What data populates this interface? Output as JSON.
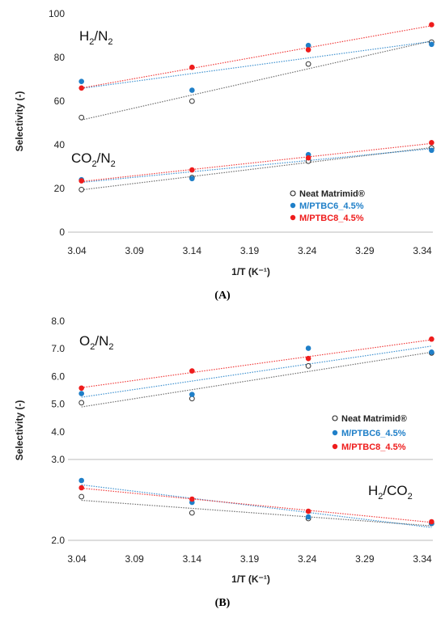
{
  "panels": [
    {
      "panel_label": "(A)",
      "xlabel": "1/T (K⁻¹)",
      "ylabel": "Selectivity  (-)",
      "x_ticks": [
        "3.04",
        "3.09",
        "3.14",
        "3.19",
        "3.24",
        "3.29",
        "3.34"
      ],
      "y_ticks": [
        "0",
        "20",
        "40",
        "60",
        "80",
        "100"
      ],
      "annotations": [
        {
          "base": "H",
          "sub1": "2",
          "mid": "/N",
          "sub2": "2"
        },
        {
          "base": "CO",
          "sub1": "2",
          "mid": "/N",
          "sub2": "2"
        }
      ],
      "legend": [
        {
          "label": "Neat Matrimid®",
          "color": "#222222",
          "marker": "open"
        },
        {
          "label": "M/PTBC6_4.5%",
          "color": "#1f7fc8",
          "marker": "filled"
        },
        {
          "label": "M/PTBC8_4.5%",
          "color": "#ee1c1c",
          "marker": "filled"
        }
      ]
    },
    {
      "panel_label": "(B)",
      "xlabel": "1/T (K⁻¹)",
      "ylabel": "Selectivity  (-)",
      "x_ticks": [
        "3.04",
        "3.09",
        "3.14",
        "3.19",
        "3.24",
        "3.29",
        "3.34"
      ],
      "y_ticks_upper": [
        "4.0",
        "5.0",
        "6.0",
        "7.0",
        "8.0"
      ],
      "y_ticks_lower": [
        "2.0",
        "3.0"
      ],
      "annotations": [
        {
          "base": "O",
          "sub1": "2",
          "mid": "/N",
          "sub2": "2"
        },
        {
          "base": "H",
          "sub1": "2",
          "mid": "/CO",
          "sub2": "2"
        }
      ],
      "legend": [
        {
          "label": "Neat Matrimid®",
          "color": "#222222",
          "marker": "open"
        },
        {
          "label": "M/PTBC6_4.5%",
          "color": "#1f7fc8",
          "marker": "filled"
        },
        {
          "label": "M/PTBC8_4.5%",
          "color": "#ee1c1c",
          "marker": "filled"
        }
      ]
    }
  ],
  "chart_data": [
    {
      "type": "scatter",
      "title": "",
      "xlabel": "1/T (K⁻¹)",
      "ylabel": "Selectivity  (-)",
      "xlim": [
        3.04,
        3.35
      ],
      "ylim": [
        0,
        100
      ],
      "grid": false,
      "legend_position": "bottom-right",
      "trendlines": "linear, dotted",
      "series": [
        {
          "name": "Neat Matrimid®",
          "group": "H2/N2",
          "color": "#222222",
          "x": [
            3.044,
            3.14,
            3.241,
            3.348
          ],
          "y": [
            52.5,
            60,
            77,
            87
          ]
        },
        {
          "name": "M/PTBC6_4.5%",
          "group": "H2/N2",
          "color": "#1f7fc8",
          "x": [
            3.044,
            3.14,
            3.241,
            3.348
          ],
          "y": [
            69,
            65,
            85.5,
            86
          ]
        },
        {
          "name": "M/PTBC8_4.5%",
          "group": "H2/N2",
          "color": "#ee1c1c",
          "x": [
            3.044,
            3.14,
            3.241,
            3.348
          ],
          "y": [
            66,
            75.5,
            83.5,
            95
          ]
        },
        {
          "name": "Neat Matrimid®",
          "group": "CO2/N2",
          "color": "#222222",
          "x": [
            3.044,
            3.14,
            3.241,
            3.348
          ],
          "y": [
            19.5,
            25,
            32.5,
            38.5
          ]
        },
        {
          "name": "M/PTBC6_4.5%",
          "group": "CO2/N2",
          "color": "#1f7fc8",
          "x": [
            3.044,
            3.14,
            3.241,
            3.348
          ],
          "y": [
            24,
            24.5,
            35.5,
            37.5
          ]
        },
        {
          "name": "M/PTBC8_4.5%",
          "group": "CO2/N2",
          "color": "#ee1c1c",
          "x": [
            3.044,
            3.14,
            3.241,
            3.348
          ],
          "y": [
            23.5,
            28.5,
            34,
            41
          ]
        }
      ]
    },
    {
      "type": "scatter",
      "title": "",
      "xlabel": "1/T (K⁻¹)",
      "ylabel": "Selectivity  (-)",
      "xlim": [
        3.04,
        3.35
      ],
      "ylim": [
        2.0,
        8.0
      ],
      "axis_break": "two subpanels: upper 3.0–8.0 (O2/N2), lower 2.0–3.0 (H2/CO2)",
      "grid": false,
      "legend_position": "right of upper subpanel",
      "trendlines": "linear, dotted",
      "series": [
        {
          "name": "Neat Matrimid®",
          "group": "O2/N2",
          "color": "#222222",
          "x": [
            3.044,
            3.14,
            3.241,
            3.348
          ],
          "y": [
            5.05,
            5.2,
            6.38,
            6.85
          ]
        },
        {
          "name": "M/PTBC6_4.5%",
          "group": "O2/N2",
          "color": "#1f7fc8",
          "x": [
            3.044,
            3.14,
            3.241,
            3.348
          ],
          "y": [
            5.38,
            5.35,
            7.02,
            6.88
          ]
        },
        {
          "name": "M/PTBC8_4.5%",
          "group": "O2/N2",
          "color": "#ee1c1c",
          "x": [
            3.044,
            3.14,
            3.241,
            3.348
          ],
          "y": [
            5.58,
            6.2,
            6.65,
            7.35
          ]
        },
        {
          "name": "Neat Matrimid®",
          "group": "H2/CO2",
          "color": "#222222",
          "x": [
            3.044,
            3.14,
            3.241,
            3.348
          ],
          "y": [
            2.54,
            2.34,
            2.27,
            2.21
          ]
        },
        {
          "name": "M/PTBC6_4.5%",
          "group": "H2/CO2",
          "color": "#1f7fc8",
          "x": [
            3.044,
            3.14,
            3.241,
            3.348
          ],
          "y": [
            2.74,
            2.47,
            2.29,
            2.21
          ]
        },
        {
          "name": "M/PTBC8_4.5%",
          "group": "H2/CO2",
          "color": "#ee1c1c",
          "x": [
            3.044,
            3.14,
            3.241,
            3.348
          ],
          "y": [
            2.65,
            2.51,
            2.36,
            2.23
          ]
        }
      ]
    }
  ]
}
